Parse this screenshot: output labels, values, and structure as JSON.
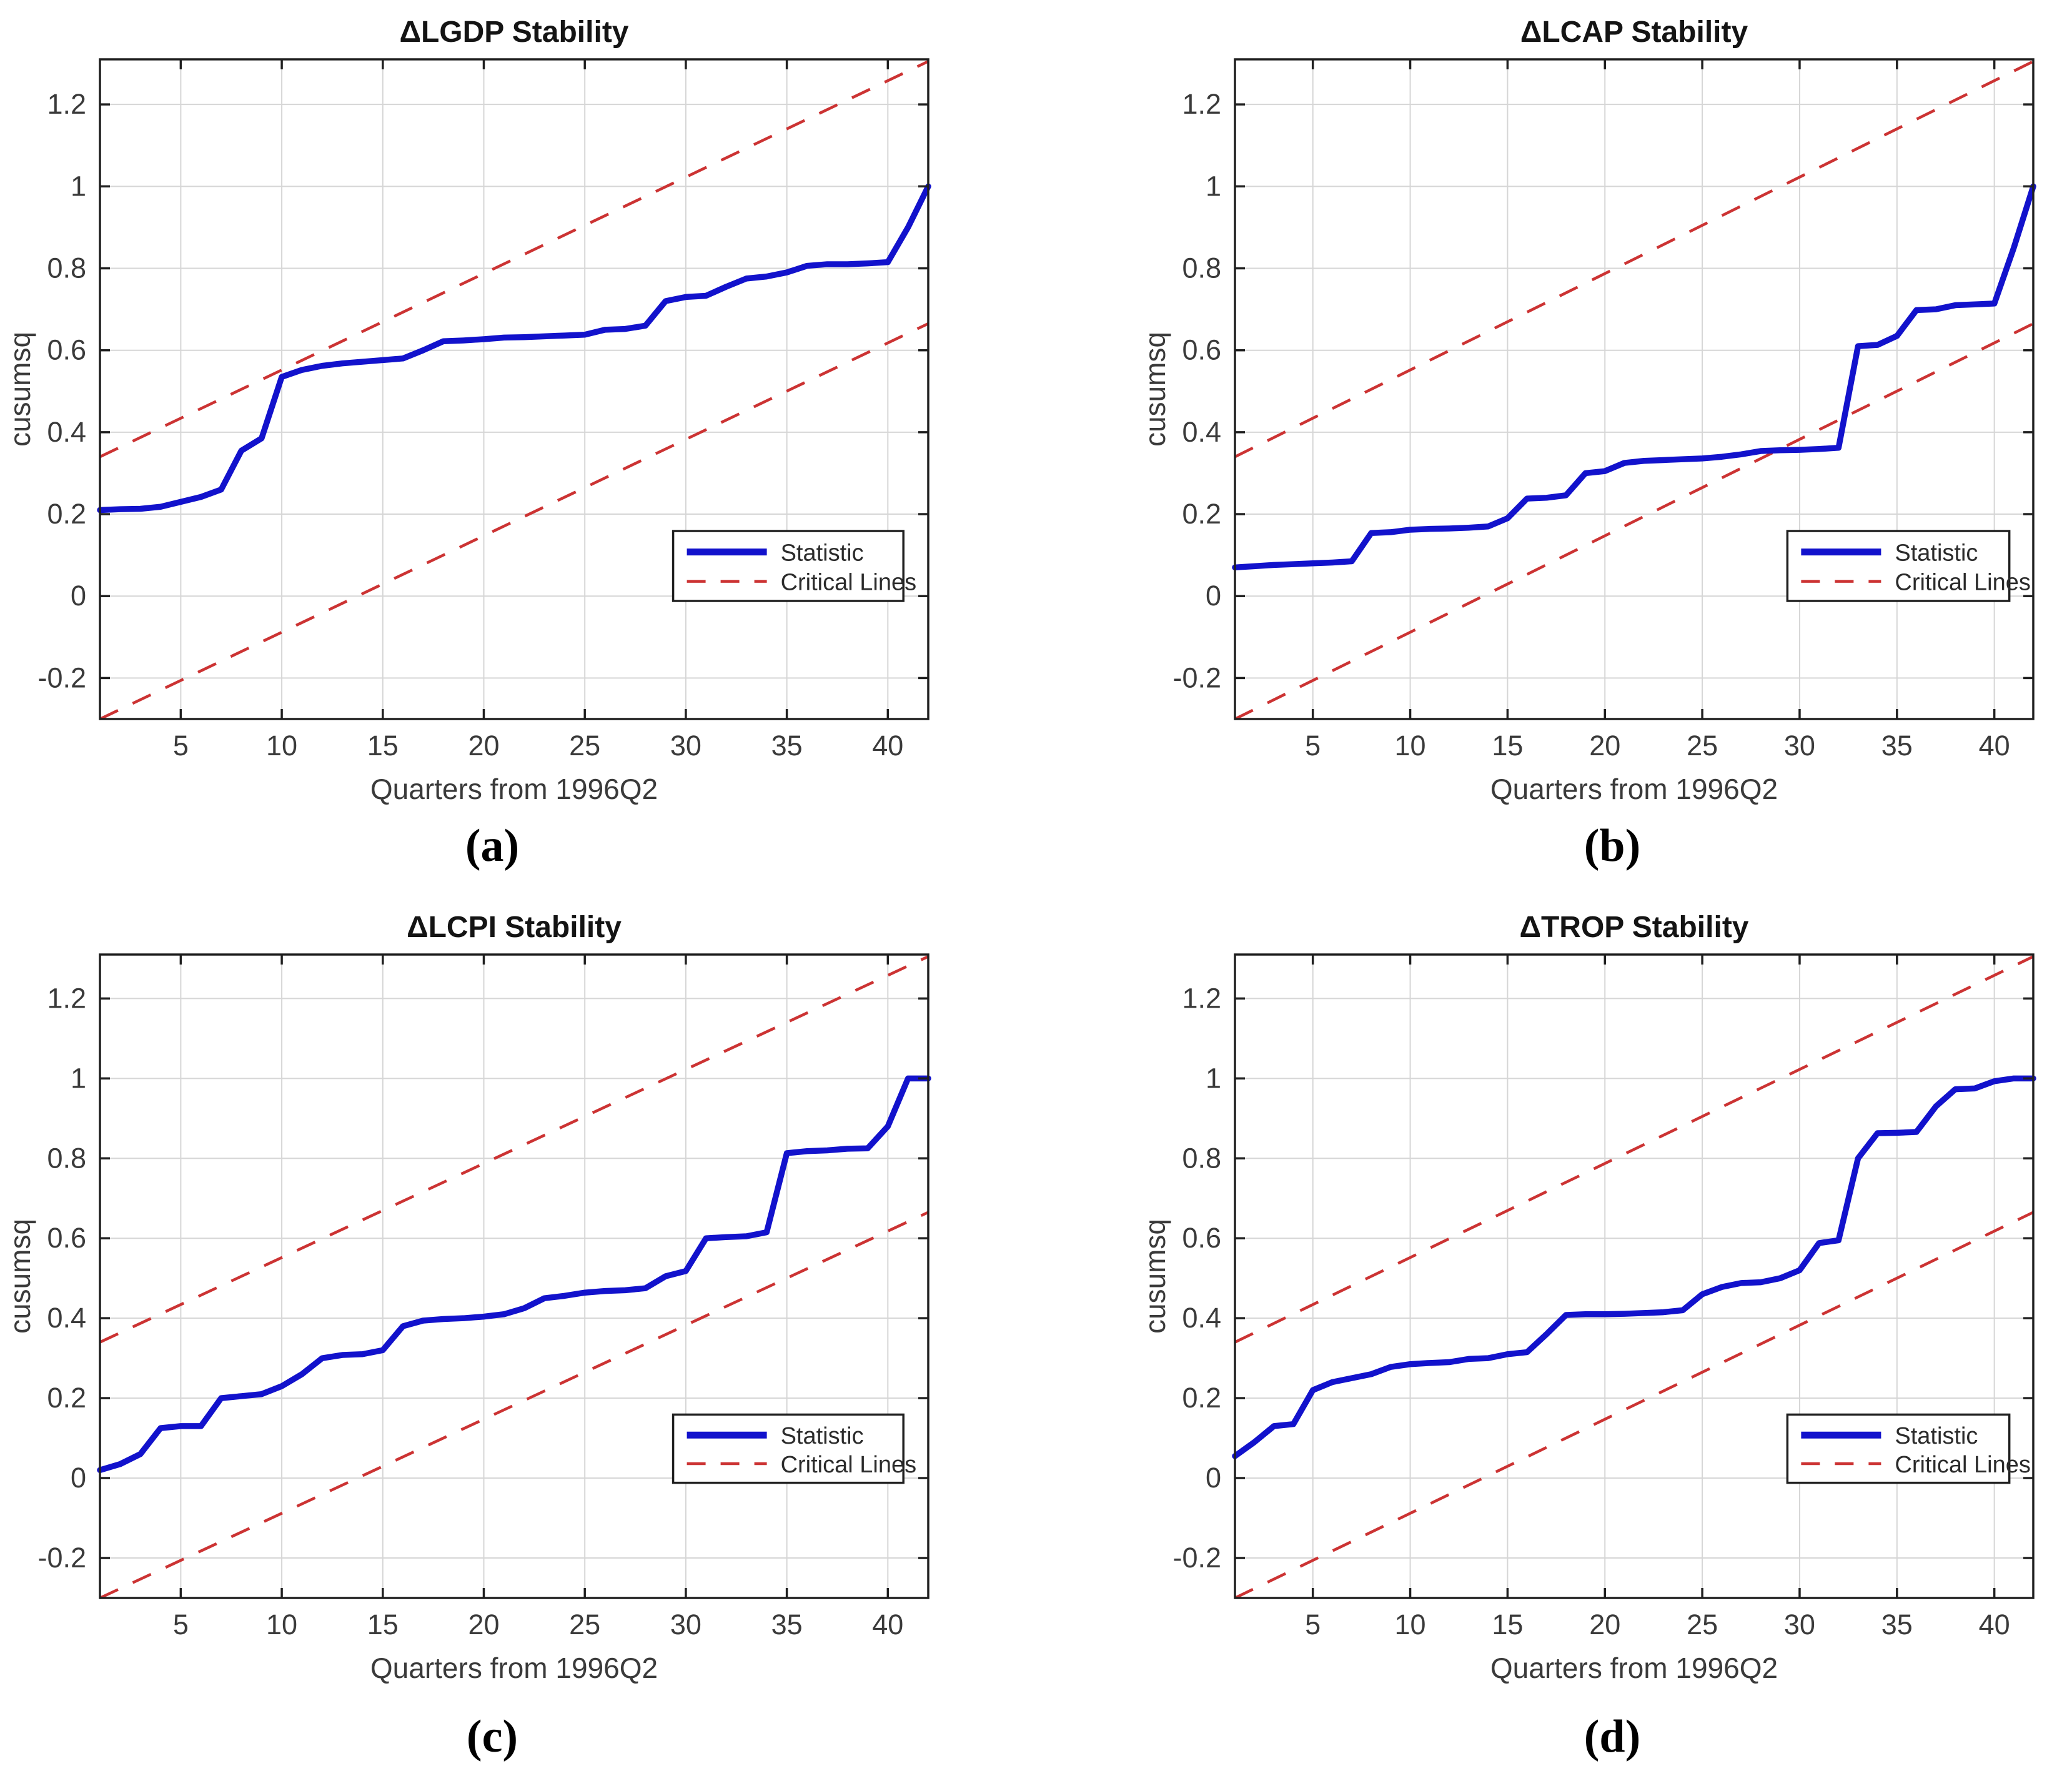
{
  "figure": {
    "background": "#ffffff",
    "colors": {
      "statistic": "#1212cc",
      "critical": "#cc3333",
      "grid": "#d6d6d6",
      "axis": "#1f1f1f",
      "tick_text": "#3a3a3a",
      "label_text": "#3a3a3a",
      "title_text": "#141414",
      "legend_text": "#2b2b2b",
      "legend_border": "#1f1f1f",
      "caption_text": "#000000"
    },
    "legend": {
      "position": "lower right",
      "entries": [
        {
          "label": "Statistic",
          "style": "solid",
          "color_key": "statistic"
        },
        {
          "label": "Critical Lines",
          "style": "dashed",
          "color_key": "critical"
        }
      ]
    }
  },
  "chart_data": [
    {
      "type": "line",
      "panel": "a",
      "caption": "(a)",
      "title": "ΔLGDP Stability",
      "xlabel": "Quarters from 1996Q2",
      "ylabel": "cusumsq",
      "xlim": [
        1,
        42
      ],
      "ylim": [
        -0.3,
        1.31
      ],
      "xticks": [
        5,
        10,
        15,
        20,
        25,
        30,
        35,
        40
      ],
      "yticks": [
        -0.2,
        0,
        0.2,
        0.4,
        0.6,
        0.8,
        1,
        1.2
      ],
      "grid": true,
      "legend_position": "lower right",
      "x": [
        1,
        2,
        3,
        4,
        5,
        6,
        7,
        8,
        9,
        10,
        11,
        12,
        13,
        14,
        15,
        16,
        17,
        18,
        19,
        20,
        21,
        22,
        23,
        24,
        25,
        26,
        27,
        28,
        29,
        30,
        31,
        32,
        33,
        34,
        35,
        36,
        37,
        38,
        39,
        40,
        41,
        42
      ],
      "series": [
        {
          "name": "Statistic",
          "style": "solid",
          "color_key": "statistic",
          "values": [
            0.21,
            0.212,
            0.213,
            0.218,
            0.23,
            0.242,
            0.26,
            0.355,
            0.385,
            0.535,
            0.552,
            0.562,
            0.568,
            0.572,
            0.576,
            0.58,
            0.6,
            0.622,
            0.624,
            0.627,
            0.631,
            0.632,
            0.634,
            0.636,
            0.638,
            0.65,
            0.652,
            0.66,
            0.72,
            0.73,
            0.733,
            0.755,
            0.775,
            0.78,
            0.79,
            0.806,
            0.81,
            0.81,
            0.812,
            0.815,
            0.9,
            1.0
          ]
        },
        {
          "name": "Critical Lines",
          "style": "dashed",
          "color_key": "critical",
          "segments": [
            {
              "x": [
                1,
                42
              ],
              "values": [
                0.34,
                1.305
              ]
            },
            {
              "x": [
                1,
                42
              ],
              "values": [
                -0.3,
                0.665
              ]
            }
          ]
        }
      ]
    },
    {
      "type": "line",
      "panel": "b",
      "caption": "(b)",
      "title": "ΔLCAP Stability",
      "xlabel": "Quarters from 1996Q2",
      "ylabel": "cusumsq",
      "xlim": [
        1,
        42
      ],
      "ylim": [
        -0.3,
        1.31
      ],
      "xticks": [
        5,
        10,
        15,
        20,
        25,
        30,
        35,
        40
      ],
      "yticks": [
        -0.2,
        0,
        0.2,
        0.4,
        0.6,
        0.8,
        1,
        1.2
      ],
      "grid": true,
      "legend_position": "lower right",
      "x": [
        1,
        2,
        3,
        4,
        5,
        6,
        7,
        8,
        9,
        10,
        11,
        12,
        13,
        14,
        15,
        16,
        17,
        18,
        19,
        20,
        21,
        22,
        23,
        24,
        25,
        26,
        27,
        28,
        29,
        30,
        31,
        32,
        33,
        34,
        35,
        36,
        37,
        38,
        39,
        40,
        41,
        42
      ],
      "series": [
        {
          "name": "Statistic",
          "style": "solid",
          "color_key": "statistic",
          "values": [
            0.07,
            0.073,
            0.076,
            0.078,
            0.08,
            0.082,
            0.085,
            0.154,
            0.156,
            0.162,
            0.164,
            0.165,
            0.167,
            0.17,
            0.19,
            0.238,
            0.24,
            0.246,
            0.3,
            0.305,
            0.325,
            0.33,
            0.332,
            0.334,
            0.336,
            0.34,
            0.346,
            0.354,
            0.356,
            0.357,
            0.359,
            0.362,
            0.61,
            0.613,
            0.635,
            0.698,
            0.7,
            0.71,
            0.712,
            0.714,
            0.85,
            1.0
          ]
        },
        {
          "name": "Critical Lines",
          "style": "dashed",
          "color_key": "critical",
          "segments": [
            {
              "x": [
                1,
                42
              ],
              "values": [
                0.34,
                1.305
              ]
            },
            {
              "x": [
                1,
                42
              ],
              "values": [
                -0.3,
                0.665
              ]
            }
          ]
        }
      ]
    },
    {
      "type": "line",
      "panel": "c",
      "caption": "(c)",
      "title": "ΔLCPI Stability",
      "xlabel": "Quarters from 1996Q2",
      "ylabel": "cusumsq",
      "xlim": [
        1,
        42
      ],
      "ylim": [
        -0.3,
        1.31
      ],
      "xticks": [
        5,
        10,
        15,
        20,
        25,
        30,
        35,
        40
      ],
      "yticks": [
        -0.2,
        0,
        0.2,
        0.4,
        0.6,
        0.8,
        1,
        1.2
      ],
      "grid": true,
      "legend_position": "lower right",
      "x": [
        1,
        2,
        3,
        4,
        5,
        6,
        7,
        8,
        9,
        10,
        11,
        12,
        13,
        14,
        15,
        16,
        17,
        18,
        19,
        20,
        21,
        22,
        23,
        24,
        25,
        26,
        27,
        28,
        29,
        30,
        31,
        32,
        33,
        34,
        35,
        36,
        37,
        38,
        39,
        40,
        41,
        42
      ],
      "series": [
        {
          "name": "Statistic",
          "style": "solid",
          "color_key": "statistic",
          "values": [
            0.02,
            0.035,
            0.06,
            0.125,
            0.13,
            0.13,
            0.2,
            0.205,
            0.21,
            0.23,
            0.26,
            0.3,
            0.308,
            0.31,
            0.32,
            0.38,
            0.394,
            0.398,
            0.4,
            0.404,
            0.41,
            0.425,
            0.45,
            0.456,
            0.464,
            0.468,
            0.47,
            0.475,
            0.505,
            0.518,
            0.6,
            0.603,
            0.605,
            0.615,
            0.813,
            0.818,
            0.82,
            0.824,
            0.825,
            0.88,
            1.0,
            1.0
          ]
        },
        {
          "name": "Critical Lines",
          "style": "dashed",
          "color_key": "critical",
          "segments": [
            {
              "x": [
                1,
                42
              ],
              "values": [
                0.34,
                1.305
              ]
            },
            {
              "x": [
                1,
                42
              ],
              "values": [
                -0.3,
                0.665
              ]
            }
          ]
        }
      ]
    },
    {
      "type": "line",
      "panel": "d",
      "caption": "(d)",
      "title": "ΔTROP Stability",
      "xlabel": "Quarters from 1996Q2",
      "ylabel": "cusumsq",
      "xlim": [
        1,
        42
      ],
      "ylim": [
        -0.3,
        1.31
      ],
      "xticks": [
        5,
        10,
        15,
        20,
        25,
        30,
        35,
        40
      ],
      "yticks": [
        -0.2,
        0,
        0.2,
        0.4,
        0.6,
        0.8,
        1,
        1.2
      ],
      "grid": true,
      "legend_position": "lower right",
      "x": [
        1,
        2,
        3,
        4,
        5,
        6,
        7,
        8,
        9,
        10,
        11,
        12,
        13,
        14,
        15,
        16,
        17,
        18,
        19,
        20,
        21,
        22,
        23,
        24,
        25,
        26,
        27,
        28,
        29,
        30,
        31,
        32,
        33,
        34,
        35,
        36,
        37,
        38,
        39,
        40,
        41,
        42
      ],
      "series": [
        {
          "name": "Statistic",
          "style": "solid",
          "color_key": "statistic",
          "values": [
            0.055,
            0.09,
            0.13,
            0.135,
            0.22,
            0.24,
            0.25,
            0.26,
            0.278,
            0.285,
            0.288,
            0.29,
            0.298,
            0.3,
            0.31,
            0.315,
            0.36,
            0.408,
            0.41,
            0.41,
            0.411,
            0.413,
            0.415,
            0.42,
            0.46,
            0.478,
            0.488,
            0.49,
            0.5,
            0.52,
            0.588,
            0.595,
            0.8,
            0.863,
            0.864,
            0.866,
            0.93,
            0.973,
            0.975,
            0.993,
            1.0,
            1.0
          ]
        },
        {
          "name": "Critical Lines",
          "style": "dashed",
          "color_key": "critical",
          "segments": [
            {
              "x": [
                1,
                42
              ],
              "values": [
                0.34,
                1.305
              ]
            },
            {
              "x": [
                1,
                42
              ],
              "values": [
                -0.3,
                0.665
              ]
            }
          ]
        }
      ]
    }
  ]
}
